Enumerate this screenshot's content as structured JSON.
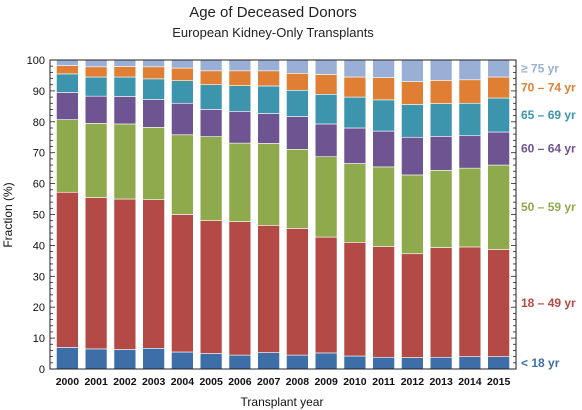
{
  "chart_data": {
    "type": "bar",
    "stacked": true,
    "title": "Age of Deceased Donors",
    "subtitle": "European Kidney-Only Transplants",
    "xlabel": "Transplant year",
    "ylabel": "Fraction (%)",
    "ylim": [
      0,
      100
    ],
    "yticks": [
      0,
      10,
      20,
      30,
      40,
      50,
      60,
      70,
      80,
      90,
      100
    ],
    "grid": false,
    "legend_position": "right",
    "categories": [
      "2000",
      "2001",
      "2002",
      "2003",
      "2004",
      "2005",
      "2006",
      "2007",
      "2008",
      "2009",
      "2010",
      "2011",
      "2012",
      "2013",
      "2014",
      "2015"
    ],
    "series": [
      {
        "name": "< 18 yr",
        "color": "#3d6ea8",
        "values": [
          7.0,
          6.5,
          6.3,
          6.7,
          5.5,
          5.0,
          4.5,
          5.3,
          4.5,
          5.2,
          4.2,
          3.8,
          3.7,
          3.8,
          4.0,
          4.0
        ]
      },
      {
        "name": "18 – 49 yr",
        "color": "#b34a45",
        "values": [
          50.2,
          49.0,
          48.7,
          48.1,
          44.5,
          43.0,
          43.2,
          41.2,
          41.0,
          37.5,
          36.8,
          35.8,
          33.6,
          35.5,
          35.5,
          34.7
        ]
      },
      {
        "name": "50 – 59 yr",
        "color": "#8faa4c",
        "values": [
          23.5,
          24.0,
          24.3,
          23.4,
          25.8,
          27.2,
          25.4,
          26.5,
          25.6,
          26.0,
          25.5,
          25.8,
          25.5,
          25.0,
          25.5,
          27.3
        ]
      },
      {
        "name": "60 – 64 yr",
        "color": "#6e5591",
        "values": [
          8.8,
          8.8,
          8.9,
          9.0,
          10.2,
          8.8,
          10.3,
          9.7,
          10.6,
          10.6,
          11.5,
          11.6,
          12.2,
          11.0,
          10.5,
          10.7
        ]
      },
      {
        "name": "65 – 69 yr",
        "color": "#3c95ad",
        "values": [
          6.0,
          6.2,
          6.3,
          6.7,
          7.3,
          8.0,
          8.3,
          8.9,
          8.5,
          9.6,
          10.0,
          10.1,
          10.6,
          10.6,
          10.5,
          11.0
        ]
      },
      {
        "name": "70 – 74 yr",
        "color": "#e07f33",
        "values": [
          2.7,
          3.3,
          3.4,
          3.9,
          4.1,
          4.5,
          4.8,
          4.9,
          5.5,
          6.4,
          6.5,
          7.2,
          7.4,
          7.5,
          7.6,
          6.8
        ]
      },
      {
        "name": "≥ 75 yr",
        "color": "#99afd5",
        "values": [
          1.8,
          2.2,
          2.1,
          2.2,
          2.6,
          3.5,
          3.5,
          3.5,
          4.3,
          4.7,
          5.5,
          5.7,
          7.0,
          6.6,
          6.4,
          5.5
        ]
      }
    ]
  }
}
